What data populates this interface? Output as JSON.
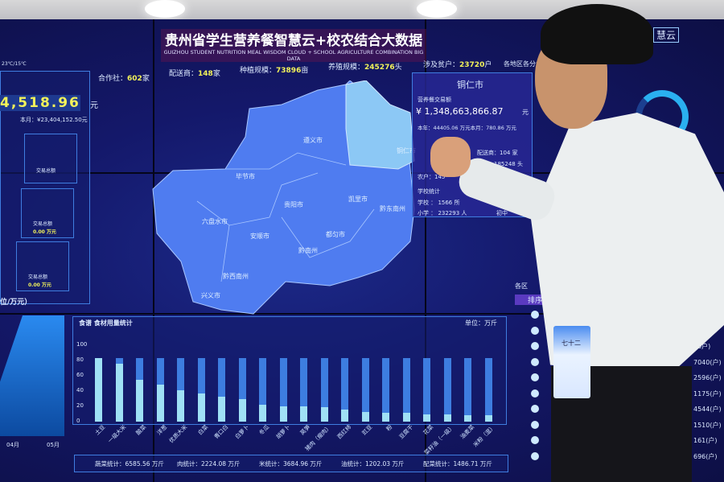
{
  "title": {
    "cn": "贵州省学生营养餐智慧云+校农结合大数据",
    "en": "GUIZHOU STUDENT NUTRITION MEAL WISDOM CLOUD + SCHOOL AGRICULTURE COMBINATION BIG DATA"
  },
  "stats": [
    {
      "label": "合作社：",
      "value": "602",
      "unit": "家"
    },
    {
      "label": "配送商：",
      "value": "148",
      "unit": "家"
    },
    {
      "label": "种植规模：",
      "value": "73896",
      "unit": "亩"
    },
    {
      "label": "养殖规模：",
      "value": "245276",
      "unit": "头"
    },
    {
      "label": "涉及贫户：",
      "value": "23720",
      "unit": "户"
    }
  ],
  "left": {
    "weather": "23℃/15℃",
    "total": "4,518.96",
    "total_unit": "元",
    "month": "本月：¥23,404,152.50元",
    "cards": [
      {
        "label": "交易总额",
        "value": "0.00 万元"
      },
      {
        "label": "交易总额",
        "value": "0.00 万元"
      },
      {
        "label": "交易总额",
        "value": "0.00 万元"
      }
    ],
    "unit_label": "位/万元）",
    "months": [
      "04月",
      "05月"
    ]
  },
  "map": {
    "cities": [
      "遵义市",
      "铜仁市",
      "毕节市",
      "贵阳市",
      "凯里市",
      "黔东南州",
      "六盘水市",
      "安顺市",
      "都匀市",
      "黔南州",
      "黔西南州",
      "兴义市"
    ]
  },
  "popup": {
    "city": "铜仁市",
    "trade_label": "营养餐交易额",
    "trade": "¥ 1,348,663,866.87",
    "trade_unit": "元",
    "year": "本年：44405.06 万元本月：780.86 万元",
    "distributor": "配送商：104 家",
    "breed": "养殖：185248 头",
    "farmer": "农户：145",
    "school_title": "学校统计",
    "school": "学校 ： 1566 所",
    "primary": "小学 ： 232293 人",
    "junior": "初中"
  },
  "right": {
    "title": "各地区各分类",
    "region": "各区",
    "rank": "排序",
    "values": [
      "户)",
      "户)",
      "40户)",
      "7040(户)",
      "2596(户)",
      "1175(户)",
      "4544(户)",
      "1510(户)",
      "161(户)",
      "696(户)"
    ],
    "logo": "慧云"
  },
  "chart_data": {
    "type": "bar",
    "title": "食谱 食材用量统计",
    "unit": "单位：万斤",
    "ylim": [
      0,
      100
    ],
    "yticks": [
      0,
      20,
      40,
      60,
      80,
      100
    ],
    "categories": [
      "土豆",
      "一级大米",
      "酸菜",
      "洋葱",
      "优质大米",
      "白菜",
      "青口白",
      "白萝卜",
      "冬瓜",
      "胡萝卜",
      "莴笋",
      "猪肉（瘦肉）",
      "西红柿",
      "豇豆",
      "粉",
      "豆腐干",
      "花菜",
      "菜籽油（一级）",
      "油麦菜",
      "米粉（湿）"
    ],
    "series": [
      {
        "values": [
          83,
          76,
          55,
          48,
          41,
          37,
          33,
          29,
          22,
          20,
          20,
          19,
          16,
          13,
          12,
          12,
          10,
          9,
          8,
          8
        ]
      },
      {
        "values": [
          83,
          83,
          83,
          83,
          83,
          83,
          83,
          83,
          83,
          83,
          83,
          83,
          83,
          83,
          83,
          83,
          83,
          83,
          83,
          83
        ]
      }
    ]
  },
  "summary": [
    "蔬菜统计：6585.56 万斤",
    "肉统计：2224.08 万斤",
    "米统计：3684.96 万斤",
    "油统计：1202.03 万斤",
    "配菜统计：1486.71 万斤"
  ],
  "badge": {
    "name": "七十二"
  },
  "colors": {
    "bar_light": "#9fe0f5",
    "bar_dark": "#3d7de0",
    "value_yellow": "#f2f25a",
    "map": "#4f7cf0",
    "highlight": "#8cc8f5"
  }
}
